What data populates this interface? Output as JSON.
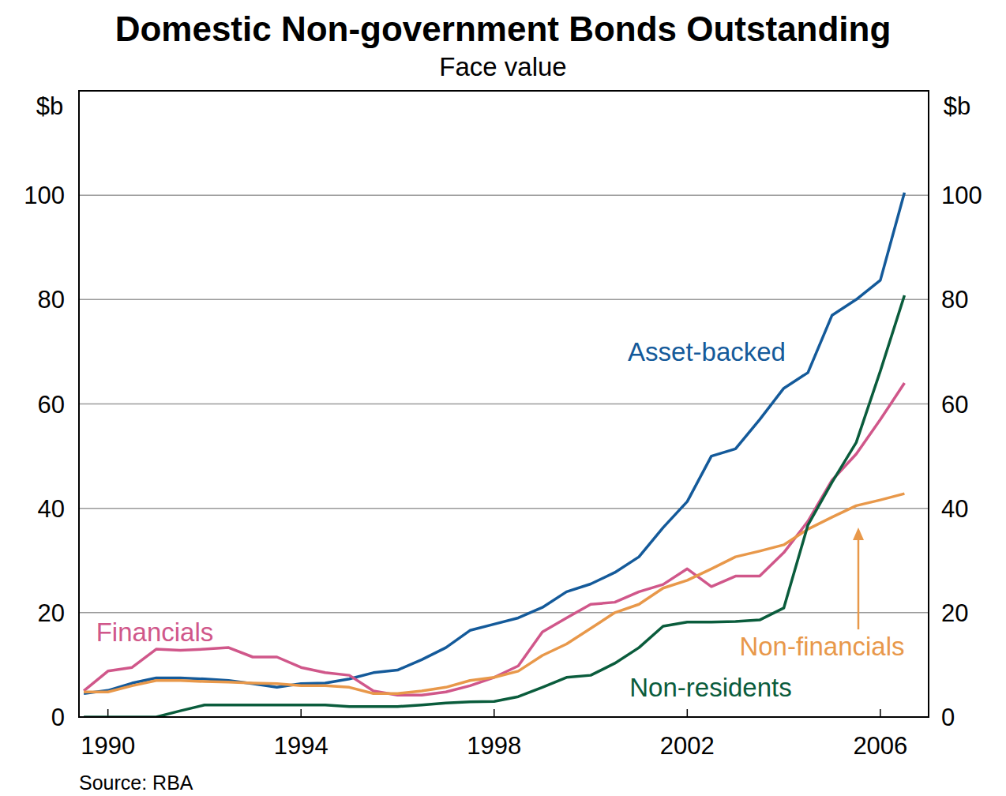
{
  "chart_data": {
    "type": "line",
    "title": "Domestic Non-government Bonds Outstanding",
    "subtitle": "Face value",
    "y_label": "$b",
    "source": "Source: RBA",
    "x": [
      1989.5,
      1990,
      1990.5,
      1991,
      1991.5,
      1992,
      1992.5,
      1993,
      1993.5,
      1994,
      1994.5,
      1995,
      1995.5,
      1996,
      1996.5,
      1997,
      1997.5,
      1998,
      1998.5,
      1999,
      1999.5,
      2000,
      2000.5,
      2001,
      2001.5,
      2002,
      2002.5,
      2003,
      2003.5,
      2004,
      2004.5,
      2005,
      2005.5,
      2006,
      2006.5
    ],
    "series": [
      {
        "name": "Asset-backed",
        "color": "#145a9a",
        "values": [
          4.5,
          5.1,
          6.5,
          7.5,
          7.5,
          7.3,
          7.0,
          6.4,
          5.7,
          6.4,
          6.5,
          7.3,
          8.5,
          9.0,
          11.0,
          13.3,
          16.6,
          17.8,
          19.0,
          21.0,
          24.0,
          25.5,
          27.7,
          30.7,
          36.3,
          41.3,
          50.0,
          51.4,
          57.0,
          63.0,
          66.0,
          77.0,
          80.0,
          83.7,
          100.5
        ]
      },
      {
        "name": "Financials",
        "color": "#d0578a",
        "values": [
          5.0,
          8.8,
          9.5,
          13.0,
          12.8,
          13.0,
          13.3,
          11.5,
          11.5,
          9.5,
          8.5,
          8.0,
          5.0,
          4.2,
          4.2,
          4.8,
          6.0,
          7.6,
          9.8,
          16.3,
          19.0,
          21.6,
          22.0,
          24.0,
          25.4,
          28.4,
          25.0,
          27.0,
          27.0,
          31.5,
          37.5,
          45.4,
          50.4,
          57.0,
          64.0
        ]
      },
      {
        "name": "Non-financials",
        "color": "#e8984a",
        "values": [
          4.8,
          4.8,
          6.0,
          7.0,
          7.0,
          6.8,
          6.7,
          6.5,
          6.4,
          6.0,
          6.0,
          5.7,
          4.5,
          4.5,
          5.0,
          5.7,
          7.0,
          7.6,
          8.8,
          11.8,
          14.0,
          17.0,
          20.0,
          21.6,
          24.7,
          26.2,
          28.4,
          30.7,
          31.8,
          33.0,
          36.0,
          38.3,
          40.5,
          41.6,
          42.8
        ]
      },
      {
        "name": "Non-residents",
        "color": "#0a5c3c",
        "values": [
          0,
          0,
          0,
          0,
          1.2,
          2.3,
          2.3,
          2.3,
          2.3,
          2.3,
          2.3,
          2.0,
          2.0,
          2.0,
          2.3,
          2.7,
          2.9,
          3.0,
          3.9,
          5.7,
          7.6,
          8.0,
          10.3,
          13.3,
          17.4,
          18.2,
          18.2,
          18.3,
          18.6,
          20.9,
          36.8,
          45.0,
          52.6,
          66.3,
          80.8
        ]
      }
    ],
    "xlim": [
      1989.4,
      2007.0
    ],
    "xticks": [
      1990,
      1994,
      1998,
      2002,
      2006
    ],
    "ylim": [
      0,
      120
    ],
    "yticks": [
      0,
      20,
      40,
      60,
      80,
      100
    ],
    "grid": true
  }
}
